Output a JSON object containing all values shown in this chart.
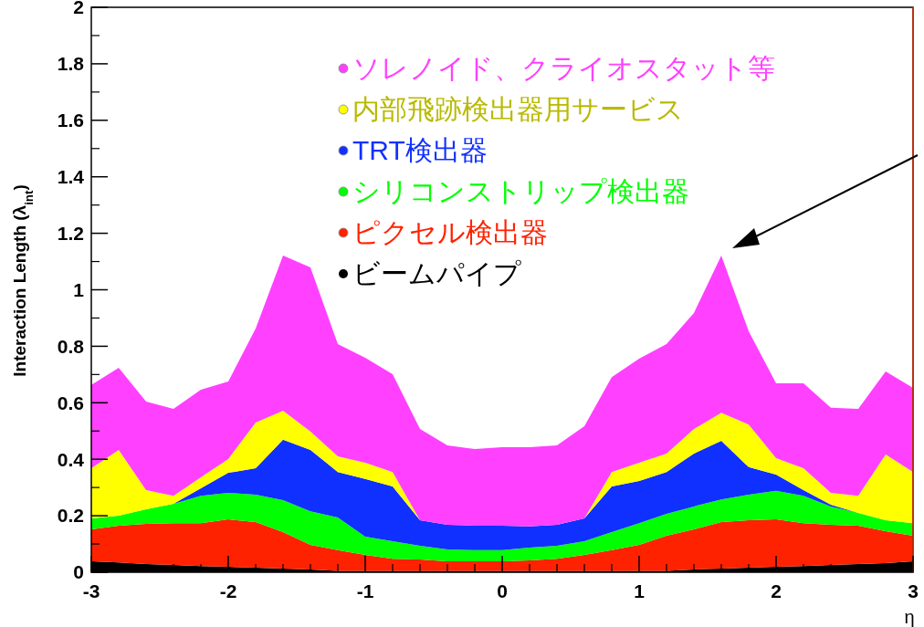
{
  "chart_data": {
    "type": "area",
    "stacked": true,
    "xlabel": "η",
    "ylabel": "Interaction Length (λ$_{int}$)",
    "x": [
      -3,
      -2.8,
      -2.6,
      -2.4,
      -2.2,
      -2,
      -1.8,
      -1.6,
      -1.4,
      -1.2,
      -1,
      -0.8,
      -0.6,
      -0.4,
      -0.2,
      0,
      0.2,
      0.4,
      0.6,
      0.8,
      1,
      1.2,
      1.4,
      1.6,
      1.8,
      2,
      2.2,
      2.4,
      2.6,
      2.8,
      3
    ],
    "xlim": [
      -3,
      3
    ],
    "xticks": [
      -3,
      -2,
      -1,
      0,
      1,
      2,
      3
    ],
    "ylim": [
      0,
      2
    ],
    "yticks": [
      0,
      0.2,
      0.4,
      0.6,
      0.8,
      1,
      1.2,
      1.4,
      1.6,
      1.8,
      2
    ],
    "legend": "top",
    "grid": false,
    "series": [
      {
        "name": "ビームパイプ",
        "color": "#000000",
        "values": [
          0.039,
          0.035,
          0.029,
          0.026,
          0.022,
          0.019,
          0.016,
          0.013,
          0.01,
          0.005,
          0.005,
          0.005,
          0.005,
          0.005,
          0.005,
          0.005,
          0.005,
          0.005,
          0.005,
          0.005,
          0.005,
          0.005,
          0.01,
          0.013,
          0.016,
          0.019,
          0.022,
          0.026,
          0.029,
          0.032,
          0.039
        ]
      },
      {
        "name": "ピクセル検出器",
        "color": "#ff2200",
        "values": [
          0.113,
          0.13,
          0.142,
          0.148,
          0.152,
          0.168,
          0.162,
          0.129,
          0.087,
          0.073,
          0.056,
          0.043,
          0.04,
          0.034,
          0.034,
          0.034,
          0.037,
          0.043,
          0.056,
          0.073,
          0.092,
          0.124,
          0.142,
          0.165,
          0.168,
          0.168,
          0.152,
          0.142,
          0.136,
          0.113,
          0.09
        ]
      },
      {
        "name": "シリコンストリップ検出器",
        "color": "#00ff00",
        "values": [
          0.039,
          0.035,
          0.052,
          0.068,
          0.097,
          0.094,
          0.097,
          0.113,
          0.119,
          0.116,
          0.065,
          0.062,
          0.049,
          0.042,
          0.039,
          0.039,
          0.045,
          0.046,
          0.049,
          0.064,
          0.077,
          0.078,
          0.081,
          0.08,
          0.091,
          0.101,
          0.097,
          0.065,
          0.045,
          0.039,
          0.045
        ]
      },
      {
        "name": "TRT検出器",
        "color": "#1030ff",
        "values": [
          0,
          0,
          0,
          0,
          0.026,
          0.071,
          0.093,
          0.214,
          0.217,
          0.161,
          0.204,
          0.194,
          0.09,
          0.087,
          0.087,
          0.087,
          0.075,
          0.074,
          0.081,
          0.162,
          0.149,
          0.148,
          0.187,
          0.207,
          0.097,
          0.058,
          0.02,
          0.006,
          0,
          0,
          0
        ]
      },
      {
        "name": "内部飛跡検出器用サービス",
        "color": "#ffff00",
        "values": [
          0.177,
          0.233,
          0.068,
          0.029,
          0.039,
          0.049,
          0.162,
          0.103,
          0.065,
          0.055,
          0.058,
          0.051,
          0,
          0,
          0,
          0,
          0,
          0,
          0,
          0.051,
          0.065,
          0.065,
          0.087,
          0.1,
          0.151,
          0.058,
          0.077,
          0.042,
          0.061,
          0.233,
          0.181
        ]
      },
      {
        "name": "ソレノイド、クライオスタット等",
        "color": "#ff40ff",
        "values": [
          0.295,
          0.291,
          0.313,
          0.307,
          0.31,
          0.274,
          0.333,
          0.549,
          0.581,
          0.398,
          0.371,
          0.346,
          0.323,
          0.281,
          0.271,
          0.278,
          0.281,
          0.281,
          0.326,
          0.336,
          0.368,
          0.388,
          0.411,
          0.556,
          0.33,
          0.265,
          0.301,
          0.301,
          0.307,
          0.294,
          0.298
        ]
      }
    ]
  }
}
